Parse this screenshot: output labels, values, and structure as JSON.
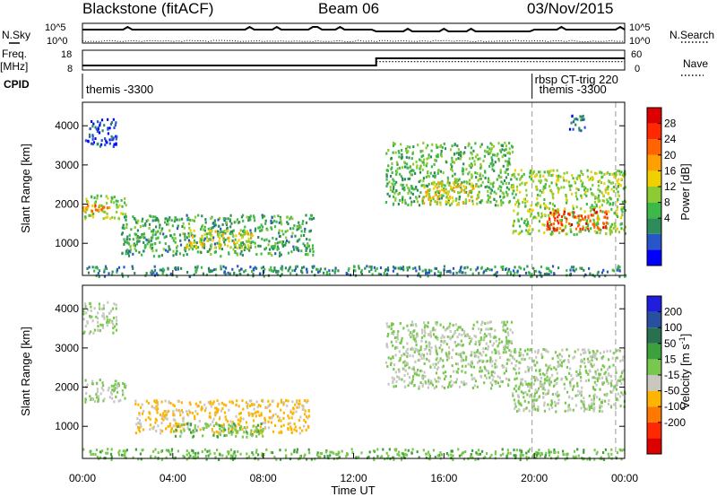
{
  "header": {
    "title": "Blackstone (fitACF)",
    "beam": "Beam 06",
    "date": "03/Nov/2015"
  },
  "left_labels": {
    "nsky": "N.Sky",
    "freq_line1": "Freq.",
    "freq_line2": "[MHz]",
    "cpid": "CPID"
  },
  "right_labels": {
    "nsearch": "N.Search",
    "nave": "Nave"
  },
  "noise_panel": {
    "left_ticks": [
      "10^5",
      "10^0"
    ],
    "right_ticks": [
      "10^5",
      "10^0"
    ]
  },
  "freq_panel": {
    "left_ticks": [
      "18",
      "8"
    ],
    "right_ticks": [
      "60",
      "0"
    ]
  },
  "cpid_labels": [
    {
      "text": "themis -3300",
      "start_hour": 0.0
    },
    {
      "text": "rbsp CT-trig 220",
      "start_hour": 19.9
    },
    {
      "text": "themis -3300",
      "start_hour": 20.0
    }
  ],
  "colors": {
    "gray_scatter": "#c8c8c0",
    "divider_line": "#9a9a9a"
  },
  "power_colorbar": {
    "label": "Power [dB]",
    "ticks": [
      "28",
      "24",
      "20",
      "16",
      "12",
      "8",
      "4"
    ],
    "colors": [
      "#0000ff",
      "#2855c8",
      "#2e8c5a",
      "#3fb84a",
      "#8ccc32",
      "#f0d000",
      "#ffa000",
      "#ff6400",
      "#ff2800",
      "#dc0000"
    ]
  },
  "velocity_colorbar": {
    "label_main": "Velocity [m s",
    "label_exp": "-1",
    "label_end": "]",
    "ticks": [
      "200",
      "100",
      "50",
      "15",
      "-15",
      "-50",
      "-100",
      "-200"
    ],
    "colors": [
      "#dc0000",
      "#ff2800",
      "#ff7800",
      "#ffb400",
      "#c8c8c0",
      "#78c850",
      "#3ca03c",
      "#287050",
      "#2850a0",
      "#1e1edc"
    ]
  },
  "chart_data": {
    "type": "heatmap",
    "xlabel": "Time UT",
    "x_ticks": [
      "00:00",
      "04:00",
      "08:00",
      "12:00",
      "16:00",
      "20:00",
      "00:00"
    ],
    "x_range_hours": [
      0,
      24
    ],
    "ylabel": "Slant Range [km]",
    "y_ticks": [
      "1000",
      "2000",
      "3000",
      "4000"
    ],
    "y_range_km": [
      180,
      4600
    ],
    "power_panel": {
      "scale_db": [
        0,
        32
      ],
      "echo_regions": [
        {
          "t": [
            0.0,
            1.9
          ],
          "range_km": [
            1650,
            2250
          ],
          "power_db": 14
        },
        {
          "t": [
            0.0,
            1.2
          ],
          "range_km": [
            1850,
            2000
          ],
          "power_db": 22
        },
        {
          "t": [
            0.0,
            1.5
          ],
          "range_km": [
            3500,
            4200
          ],
          "power_db": 4
        },
        {
          "t": [
            1.7,
            10.2
          ],
          "range_km": [
            700,
            1750
          ],
          "power_db": 10
        },
        {
          "t": [
            4.5,
            7.5
          ],
          "range_km": [
            900,
            1400
          ],
          "power_db": 16
        },
        {
          "t": [
            13.4,
            19.0
          ],
          "range_km": [
            2000,
            3600
          ],
          "power_db": 12
        },
        {
          "t": [
            15.0,
            17.5
          ],
          "range_km": [
            2000,
            2600
          ],
          "power_db": 18
        },
        {
          "t": [
            19.0,
            24.0
          ],
          "range_km": [
            1250,
            2900
          ],
          "power_db": 14
        },
        {
          "t": [
            20.5,
            23.2
          ],
          "range_km": [
            1350,
            1900
          ],
          "power_db": 26
        },
        {
          "t": [
            21.5,
            22.2
          ],
          "range_km": [
            3900,
            4300
          ],
          "power_db": 6
        },
        {
          "t": [
            0.0,
            24.0
          ],
          "range_km": [
            180,
            450
          ],
          "power_db": 8
        }
      ]
    },
    "velocity_panel": {
      "scale_ms": [
        -250,
        250
      ],
      "echo_regions": [
        {
          "t": [
            0.0,
            1.9
          ],
          "range_km": [
            1650,
            2250
          ],
          "velocity_ms": 0
        },
        {
          "t": [
            0.0,
            1.5
          ],
          "range_km": [
            3400,
            4200
          ],
          "velocity_ms": 0
        },
        {
          "t": [
            2.3,
            10.0
          ],
          "range_km": [
            850,
            1700
          ],
          "velocity_ms": -60
        },
        {
          "t": [
            4.0,
            8.0
          ],
          "range_km": [
            750,
            1100
          ],
          "velocity_ms": 40
        },
        {
          "t": [
            13.4,
            19.0
          ],
          "range_km": [
            2000,
            3700
          ],
          "velocity_ms": 0
        },
        {
          "t": [
            19.0,
            24.0
          ],
          "range_km": [
            1400,
            3000
          ],
          "velocity_ms": 0
        },
        {
          "t": [
            0.0,
            24.0
          ],
          "range_km": [
            180,
            450
          ],
          "velocity_ms": 40
        }
      ]
    },
    "noise_series": [
      {
        "name": "N.Sky",
        "level": "high"
      },
      {
        "name": "N.Search",
        "level": "low"
      }
    ],
    "freq_series": [
      {
        "name": "Freq.",
        "segments": [
          {
            "t": [
              0.0,
              13.0
            ],
            "mhz": 10.5
          },
          {
            "t": [
              13.0,
              24.0
            ],
            "mhz": 14.5
          }
        ]
      },
      {
        "name": "Nave",
        "segments": [
          {
            "t": [
              0.0,
              13.0
            ],
            "value": 14
          },
          {
            "t": [
              13.0,
              24.0
            ],
            "value": 28
          }
        ]
      }
    ],
    "cpid_change_hours": [
      19.9
    ]
  }
}
